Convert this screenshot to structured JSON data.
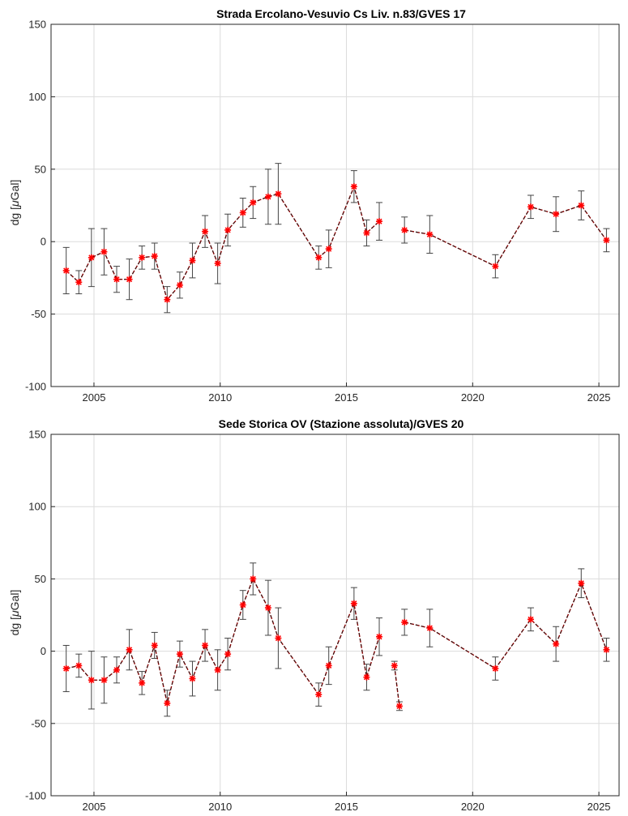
{
  "chart_data": [
    {
      "type": "line",
      "title": "Strada Ercolano-Vesuvio Cs Liv. n.83/GVES 17",
      "ylabel_main": "dg [",
      "ylabel_greek": "μ",
      "ylabel_unit": "Gal]",
      "xlim": [
        2003.3,
        2025.8
      ],
      "ylim": [
        -100,
        150
      ],
      "xticks": [
        2005,
        2010,
        2015,
        2020,
        2025
      ],
      "yticks": [
        -100,
        -50,
        0,
        50,
        100,
        150
      ],
      "grid": true,
      "series": [
        {
          "x": [
            2003.9,
            2004.4,
            2004.9,
            2005.4,
            2005.9,
            2006.4,
            2006.9,
            2007.4,
            2007.9,
            2008.4,
            2008.9,
            2009.4,
            2009.9,
            2010.3,
            2010.9,
            2011.3,
            2011.9,
            2012.3,
            2013.9,
            2014.3,
            2015.3,
            2015.8,
            2016.3,
            2017.3,
            2018.3,
            2020.9,
            2022.3,
            2023.3,
            2024.3,
            2025.3
          ],
          "y": [
            -20,
            -28,
            -11,
            -7,
            -26,
            -26,
            -11,
            -10,
            -40,
            -30,
            -13,
            7,
            -15,
            8,
            20,
            27,
            31,
            33,
            -11,
            -5,
            38,
            6,
            14,
            8,
            5,
            -17,
            24,
            19,
            25,
            1
          ],
          "err": [
            16,
            8,
            20,
            16,
            9,
            14,
            8,
            9,
            9,
            9,
            12,
            11,
            14,
            11,
            10,
            11,
            19,
            21,
            8,
            13,
            11,
            9,
            13,
            9,
            13,
            8,
            8,
            12,
            10,
            8
          ],
          "segments": [
            [
              0,
              22
            ],
            [
              23,
              29
            ]
          ]
        }
      ]
    },
    {
      "type": "line",
      "title": "Sede Storica OV (Stazione assoluta)/GVES 20",
      "ylabel_main": "dg [",
      "ylabel_greek": "μ",
      "ylabel_unit": "Gal]",
      "xlim": [
        2003.3,
        2025.8
      ],
      "ylim": [
        -100,
        150
      ],
      "xticks": [
        2005,
        2010,
        2015,
        2020,
        2025
      ],
      "yticks": [
        -100,
        -50,
        0,
        50,
        100,
        150
      ],
      "grid": true,
      "series": [
        {
          "x": [
            2003.9,
            2004.4,
            2004.9,
            2005.4,
            2005.9,
            2006.4,
            2006.9,
            2007.4,
            2007.9,
            2008.4,
            2008.9,
            2009.4,
            2009.9,
            2010.3,
            2010.9,
            2011.3,
            2011.9,
            2012.3,
            2013.9,
            2014.3,
            2015.3,
            2015.8,
            2016.3,
            2016.9,
            2017.1,
            2017.3,
            2018.3,
            2020.9,
            2022.3,
            2023.3,
            2024.3,
            2025.3
          ],
          "y": [
            -12,
            -10,
            -20,
            -20,
            -13,
            1,
            -22,
            4,
            -36,
            -2,
            -19,
            4,
            -13,
            -2,
            32,
            50,
            30,
            9,
            -30,
            -10,
            33,
            -18,
            10,
            -10,
            -38,
            20,
            16,
            -12,
            22,
            5,
            47,
            1
          ],
          "err": [
            16,
            8,
            20,
            16,
            9,
            14,
            8,
            9,
            9,
            9,
            12,
            11,
            14,
            11,
            10,
            11,
            19,
            21,
            8,
            13,
            11,
            9,
            13,
            3,
            3,
            9,
            13,
            8,
            8,
            12,
            10,
            8
          ],
          "segments": [
            [
              0,
              22
            ],
            [
              23,
              24
            ],
            [
              25,
              31
            ]
          ]
        }
      ]
    }
  ]
}
